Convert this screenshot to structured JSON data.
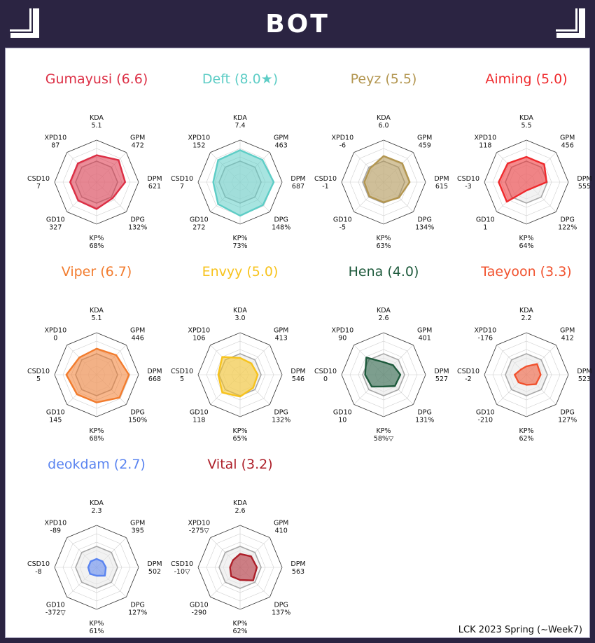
{
  "header": {
    "title": "BOT"
  },
  "footer": "LCK 2023 Spring (~Week7)",
  "icons": {
    "left_corner": "corner-bracket-icon",
    "right_corner": "corner-bracket-icon"
  },
  "chart_data": {
    "type": "radar",
    "axes": [
      "KDA",
      "GPM",
      "DPM",
      "DPG",
      "KP%",
      "GD10",
      "CSD10",
      "XPD10"
    ],
    "players": [
      {
        "title": "Gumayusi (6.6)",
        "color": "#dc2f45",
        "values": [
          "5.1",
          "472",
          "621",
          "132%",
          "68%",
          "327",
          "7",
          "87"
        ],
        "fractions": [
          0.64,
          0.74,
          0.68,
          0.54,
          0.64,
          0.62,
          0.63,
          0.63
        ]
      },
      {
        "title": "Deft (8.0★)",
        "color": "#5ecdc6",
        "values": [
          "7.4",
          "463",
          "687",
          "148%",
          "73%",
          "272",
          "7",
          "152"
        ],
        "fractions": [
          0.76,
          0.75,
          0.8,
          0.77,
          0.8,
          0.74,
          0.64,
          0.74
        ]
      },
      {
        "title": "Peyz (5.5)",
        "color": "#b39650",
        "values": [
          "6.0",
          "459",
          "615",
          "134%",
          "63%",
          "-5",
          "-1",
          "-6"
        ],
        "fractions": [
          0.62,
          0.63,
          0.62,
          0.52,
          0.48,
          0.48,
          0.46,
          0.46
        ]
      },
      {
        "title": "Aiming (5.0)",
        "color": "#ef2a2d",
        "values": [
          "5.5",
          "456",
          "555",
          "122%",
          "64%",
          "1",
          "-3",
          "118"
        ],
        "fractions": [
          0.6,
          0.6,
          0.48,
          0.2,
          0.2,
          0.66,
          0.66,
          0.63
        ]
      },
      {
        "title": "Viper (6.7)",
        "color": "#f27c2e",
        "values": [
          "5.1",
          "446",
          "668",
          "150%",
          "68%",
          "145",
          "5",
          "0"
        ],
        "fractions": [
          0.62,
          0.66,
          0.77,
          0.77,
          0.66,
          0.66,
          0.72,
          0.58
        ]
      },
      {
        "title": "Envyy (5.0)",
        "color": "#f7c31d",
        "values": [
          "3.0",
          "413",
          "546",
          "132%",
          "65%",
          "118",
          "5",
          "106"
        ],
        "fractions": [
          0.4,
          0.38,
          0.42,
          0.44,
          0.52,
          0.6,
          0.52,
          0.6
        ]
      },
      {
        "title": "Hena (4.0)",
        "color": "#1e5a3c",
        "values": [
          "2.6",
          "401",
          "527",
          "131%",
          "58%▽",
          "10",
          "0",
          "90"
        ],
        "fractions": [
          0.3,
          0.32,
          0.4,
          0.38,
          0.28,
          0.4,
          0.44,
          0.58
        ]
      },
      {
        "title": "Taeyoon (3.3)",
        "color": "#f1522e",
        "values": [
          "2.2",
          "412",
          "523",
          "127%",
          "62%",
          "-210",
          "-2",
          "-176"
        ],
        "fractions": [
          0.2,
          0.36,
          0.34,
          0.32,
          0.24,
          0.26,
          0.28,
          0.18
        ]
      },
      {
        "title": "deokdam (2.7)",
        "color": "#5a84f0",
        "values": [
          "2.3",
          "395",
          "502",
          "127%",
          "61%",
          "-372▽",
          "-8",
          "-89"
        ],
        "fractions": [
          0.2,
          0.2,
          0.22,
          0.28,
          0.2,
          0.22,
          0.2,
          0.2
        ]
      },
      {
        "title": "Vital (3.2)",
        "color": "#ad1f29",
        "values": [
          "2.6",
          "410",
          "563",
          "137%",
          "62%",
          "-290",
          "-10▽",
          "-275▽"
        ],
        "fractions": [
          0.32,
          0.37,
          0.4,
          0.44,
          0.3,
          0.3,
          0.24,
          0.24
        ]
      }
    ]
  }
}
